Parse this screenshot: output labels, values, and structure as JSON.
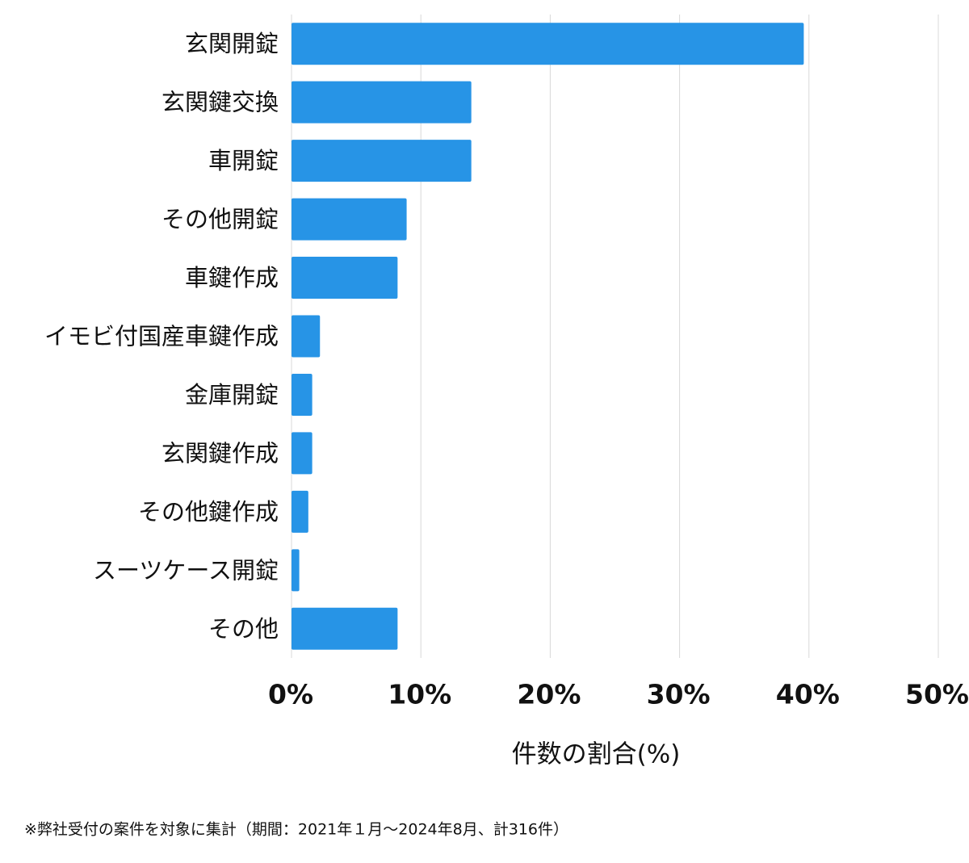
{
  "chart_data": {
    "type": "bar",
    "orientation": "horizontal",
    "categories": [
      "玄関開錠",
      "玄関鍵交換",
      "車開錠",
      "その他開錠",
      "車鍵作成",
      "イモビ付国産車鍵作成",
      "金庫開錠",
      "玄関鍵作成",
      "その他鍵作成",
      "スーツケース開錠",
      "その他"
    ],
    "values": [
      39.6,
      13.9,
      13.9,
      8.9,
      8.2,
      2.2,
      1.6,
      1.6,
      1.3,
      0.6,
      8.2
    ],
    "color": "#2794e6",
    "xlim": [
      0,
      50
    ],
    "xticks": [
      {
        "value": 0,
        "label": "0%"
      },
      {
        "value": 10,
        "label": "10%"
      },
      {
        "value": 20,
        "label": "20%"
      },
      {
        "value": 30,
        "label": "30%"
      },
      {
        "value": 40,
        "label": "40%"
      },
      {
        "value": 50,
        "label": "50%"
      }
    ],
    "x_label": "件数の割合(%)",
    "grid": true,
    "footnote": "※弊社受付の案件を対象に集計（期間：2021年１月〜2024年8月、計316件）"
  }
}
